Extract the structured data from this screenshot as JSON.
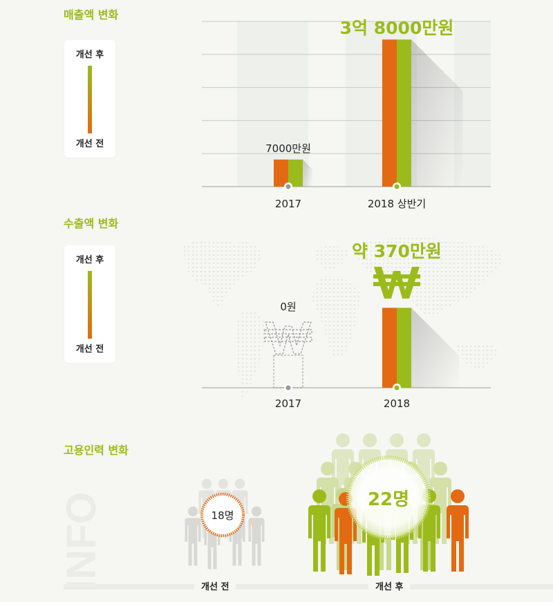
{
  "sections": {
    "sales_title": "매출액 변화",
    "export_title": "수출액 변화",
    "employ_title": "고용인력 변화"
  },
  "legend": {
    "after": "개선 후",
    "before": "개선 전"
  },
  "colors": {
    "orange": "#e36a12",
    "green": "#9bbb1c",
    "title_green": "#9bbb1c"
  },
  "chart_data": [
    {
      "type": "bar",
      "name": "매출액 변화",
      "categories": [
        "2017",
        "2018 상반기"
      ],
      "series": [
        {
          "name": "개선 전",
          "values": [
            7000,
            38000
          ]
        },
        {
          "name": "개선 후",
          "values": [
            7000,
            38000
          ]
        }
      ],
      "data_labels": [
        "7000만원",
        "3억 8000만원"
      ],
      "ylim": [
        0,
        40000
      ],
      "grid": true
    },
    {
      "type": "bar",
      "name": "수출액 변화",
      "categories": [
        "2017",
        "2018"
      ],
      "series": [
        {
          "name": "개선 전",
          "values": [
            0,
            370
          ]
        },
        {
          "name": "개선 후",
          "values": [
            0,
            370
          ]
        }
      ],
      "data_labels": [
        "0원",
        "약 370만원"
      ],
      "ylim": [
        0,
        400
      ],
      "grid": false
    },
    {
      "type": "bar",
      "name": "고용인력 변화",
      "categories": [
        "개선 전",
        "개선 후"
      ],
      "values": [
        18,
        22
      ],
      "data_labels": [
        "18명",
        "22명"
      ]
    }
  ],
  "info_text": "INFO",
  "currency_icon": "won-sign-icon"
}
